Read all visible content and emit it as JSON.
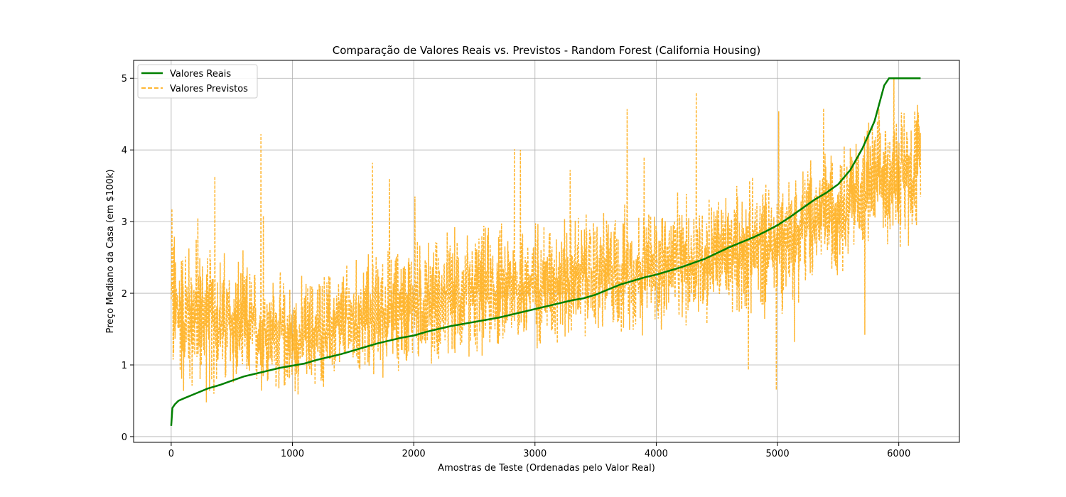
{
  "chart_data": {
    "type": "line",
    "title": "Comparação de Valores Reais vs. Previstos - Random Forest (California Housing)",
    "xlabel": "Amostras de Teste (Ordenadas pelo Valor Real)",
    "ylabel": "Preço Mediano da Casa (em $100k)",
    "xlim": [
      -310,
      6500
    ],
    "ylim": [
      -0.08,
      5.25
    ],
    "xticks": [
      0,
      1000,
      2000,
      3000,
      4000,
      5000,
      6000
    ],
    "yticks": [
      0,
      1,
      2,
      3,
      4,
      5
    ],
    "grid": true,
    "legend_position": "top-left",
    "colors": {
      "real": "#008000",
      "predicted": "#FFA500"
    },
    "series": [
      {
        "name": "Valores Reais",
        "style": "solid",
        "color": "#008000",
        "x": [
          0,
          10,
          30,
          60,
          100,
          200,
          300,
          400,
          500,
          600,
          700,
          800,
          900,
          1000,
          1100,
          1200,
          1300,
          1400,
          1500,
          1600,
          1700,
          1800,
          1900,
          2000,
          2100,
          2200,
          2300,
          2400,
          2500,
          2600,
          2700,
          2800,
          2900,
          3000,
          3100,
          3200,
          3300,
          3400,
          3500,
          3600,
          3700,
          3800,
          3900,
          4000,
          4100,
          4200,
          4300,
          4400,
          4500,
          4600,
          4700,
          4800,
          4900,
          5000,
          5100,
          5200,
          5300,
          5400,
          5500,
          5600,
          5700,
          5800,
          5880,
          5920,
          6000,
          6100,
          6180
        ],
        "values": [
          0.15,
          0.4,
          0.45,
          0.5,
          0.53,
          0.6,
          0.67,
          0.72,
          0.78,
          0.84,
          0.88,
          0.92,
          0.96,
          0.99,
          1.02,
          1.07,
          1.11,
          1.15,
          1.2,
          1.25,
          1.3,
          1.34,
          1.38,
          1.41,
          1.46,
          1.5,
          1.54,
          1.57,
          1.6,
          1.63,
          1.66,
          1.7,
          1.74,
          1.78,
          1.82,
          1.86,
          1.9,
          1.93,
          1.98,
          2.05,
          2.12,
          2.17,
          2.22,
          2.26,
          2.31,
          2.36,
          2.42,
          2.48,
          2.56,
          2.64,
          2.71,
          2.78,
          2.86,
          2.95,
          3.06,
          3.18,
          3.3,
          3.4,
          3.52,
          3.72,
          4.02,
          4.4,
          4.9,
          5.0,
          5.0,
          5.0,
          5.0
        ]
      },
      {
        "name": "Valores Previstos",
        "style": "dashed",
        "color": "#FFA500",
        "note_samples": 6180,
        "noise_band": [
          [
            0,
            0.32,
            3.18
          ],
          [
            1000,
            0.45,
            2.3
          ],
          [
            2000,
            0.8,
            2.9
          ],
          [
            3000,
            1.1,
            3.2
          ],
          [
            4000,
            1.3,
            3.4
          ],
          [
            5000,
            1.6,
            3.8
          ],
          [
            5800,
            2.5,
            4.6
          ],
          [
            6180,
            2.6,
            5.0
          ]
        ],
        "spikes": [
          [
            5,
            3.18
          ],
          [
            220,
            3.05
          ],
          [
            360,
            3.63
          ],
          [
            740,
            4.22
          ],
          [
            760,
            3.08
          ],
          [
            1660,
            3.82
          ],
          [
            1800,
            3.6
          ],
          [
            2010,
            3.35
          ],
          [
            2830,
            4.01
          ],
          [
            2880,
            4.0
          ],
          [
            3290,
            3.72
          ],
          [
            3760,
            4.57
          ],
          [
            3900,
            3.9
          ],
          [
            4330,
            4.8
          ],
          [
            4760,
            0.93
          ],
          [
            4990,
            0.65
          ],
          [
            5010,
            4.54
          ],
          [
            5140,
            1.32
          ],
          [
            5380,
            4.58
          ],
          [
            5720,
            1.42
          ],
          [
            5960,
            5.0
          ]
        ]
      }
    ]
  },
  "legend": {
    "real_label": "Valores Reais",
    "predicted_label": "Valores Previstos"
  }
}
